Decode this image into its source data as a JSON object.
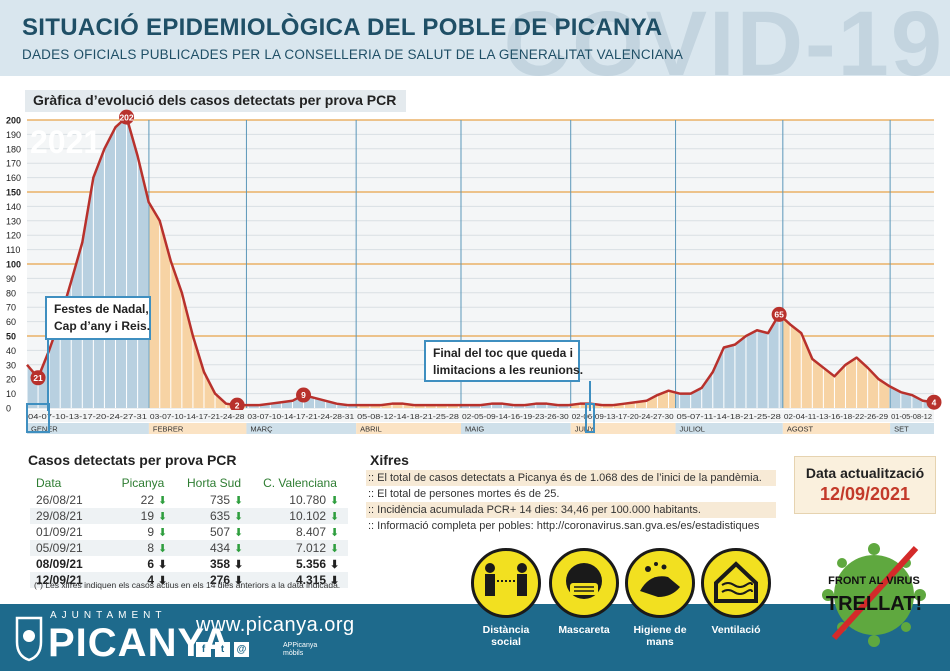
{
  "header": {
    "title": "SITUACIÓ EPIDEMIOLÒGICA DEL POBLE DE PICANYA",
    "subtitle": "DADES OFICIALS PUBLICADES PER LA CONSELLERIA DE SALUT DE LA GENERALITAT VALENCIANA",
    "big_word": "COVID-19"
  },
  "chart_title": "Gràfica d’evolució dels casos detectats per prova PCR",
  "chart_data": {
    "type": "area",
    "year_label": "2021",
    "ylim": [
      0,
      200
    ],
    "y_ticks": [
      0,
      10,
      20,
      30,
      40,
      50,
      60,
      70,
      80,
      90,
      100,
      110,
      120,
      130,
      140,
      150,
      160,
      170,
      180,
      190,
      200
    ],
    "y_bold_ticks": [
      50,
      100,
      150,
      200
    ],
    "months": [
      {
        "label": "GENER",
        "weeks": 5,
        "ticks": "04-07-10-13-17-20-24-27-31",
        "shade": "blue"
      },
      {
        "label": "FEBRER",
        "weeks": 4,
        "ticks": "03-07-10-14-17-21-24-28",
        "shade": "orange"
      },
      {
        "label": "MARÇ",
        "weeks": 4.5,
        "ticks": "03-07-10-14-17-21-24-28-31",
        "shade": "blue"
      },
      {
        "label": "ABRIL",
        "weeks": 4.3,
        "ticks": "05-08-12-14-18-21-25-28",
        "shade": "orange"
      },
      {
        "label": "MAIG",
        "weeks": 4.5,
        "ticks": "02-05-09-14-16-19-23-26-30",
        "shade": "blue"
      },
      {
        "label": "JUNY",
        "weeks": 4.3,
        "ticks": "02-06-09-13-17-20-24-27-30",
        "shade": "orange"
      },
      {
        "label": "JULIOL",
        "weeks": 4.4,
        "ticks": "05-07-11-14-18-21-25-28",
        "shade": "blue"
      },
      {
        "label": "AGOST",
        "weeks": 4.4,
        "ticks": "02-04-11-13-16-18-22-26-29",
        "shade": "orange"
      },
      {
        "label": "SET",
        "weeks": 1.8,
        "ticks": "01-05-08-12",
        "shade": "blue"
      }
    ],
    "values": [
      30,
      21,
      40,
      62,
      88,
      115,
      160,
      180,
      195,
      202,
      175,
      143,
      130,
      102,
      80,
      50,
      25,
      10,
      3,
      2,
      2,
      2,
      3,
      4,
      5,
      9,
      7,
      5,
      3,
      2,
      2,
      2,
      2,
      3,
      3,
      2,
      2,
      2,
      2,
      2,
      2,
      2,
      3,
      3,
      2,
      2,
      3,
      3,
      2,
      2,
      3,
      3,
      2,
      2,
      3,
      4,
      5,
      9,
      12,
      10,
      10,
      14,
      25,
      42,
      44,
      50,
      54,
      52,
      65,
      58,
      52,
      34,
      28,
      22,
      30,
      35,
      28,
      20,
      15,
      11,
      9,
      5,
      4
    ],
    "point_labels": [
      {
        "index": 1,
        "value": 21
      },
      {
        "index": 9,
        "value": 202
      },
      {
        "index": 19,
        "value": 2
      },
      {
        "index": 25,
        "value": 9
      },
      {
        "index": 68,
        "value": 65
      },
      {
        "index": 82,
        "value": 4
      }
    ],
    "annotations": [
      {
        "text": [
          "Festes de Nadal,",
          "Cap d’any i Reis."
        ]
      },
      {
        "text": [
          "Final del toc que queda i",
          "limitacions a les reunions."
        ]
      }
    ]
  },
  "cases": {
    "title": "Casos detectats per prova PCR",
    "columns": [
      "Data",
      "Picanya",
      "Horta Sud",
      "C. Valenciana"
    ],
    "rows": [
      {
        "date": "26/08/21",
        "picanya": "22",
        "horta": "735",
        "cv": "10.780"
      },
      {
        "date": "29/08/21",
        "picanya": "19",
        "horta": "635",
        "cv": "10.102"
      },
      {
        "date": "01/09/21",
        "picanya": "9",
        "horta": "507",
        "cv": "8.407"
      },
      {
        "date": "05/09/21",
        "picanya": "8",
        "horta": "434",
        "cv": "7.012"
      },
      {
        "date": "08/09/21",
        "picanya": "6",
        "horta": "358",
        "cv": "5.356"
      },
      {
        "date": "12/09/21",
        "picanya": "4",
        "horta": "276",
        "cv": "4.315"
      }
    ],
    "footnote": "(*) Les xifres indiquen els casos actius en els 14 dies anteriors a la data indicada."
  },
  "xifres": {
    "title": "Xifres",
    "lines": [
      ":: El total de casos detectats a Picanya és de 1.068 des de l’inici de la pandèmia.",
      ":: El total de persones mortes és de 25.",
      ":: Incidència acumulada PCR+ 14 dies: 34,46 per 100.000 habitants.",
      ":: Informació completa per pobles: http://coronavirus.san.gva.es/es/estadistiques"
    ]
  },
  "update": {
    "label": "Data actualització",
    "date": "12/09/2021"
  },
  "footer": {
    "brand_small": "AJUNTAMENT",
    "brand": "PICANYA",
    "web": "www.picanya.org",
    "app": "APPicanya\nmòbils",
    "measures": [
      "Distància social",
      "Mascareta",
      "Higiene de mans",
      "Ventilació"
    ],
    "front": [
      "FRONT AL VIRUS",
      "TRELLAT!"
    ]
  },
  "colors": {
    "line": "#b8312c",
    "blue_fill": "#b8d0e0",
    "orange_fill": "#f7d3a4",
    "title": "#1f4f66",
    "footer": "#1e6a8c",
    "measure_yellow": "#f2e020"
  }
}
